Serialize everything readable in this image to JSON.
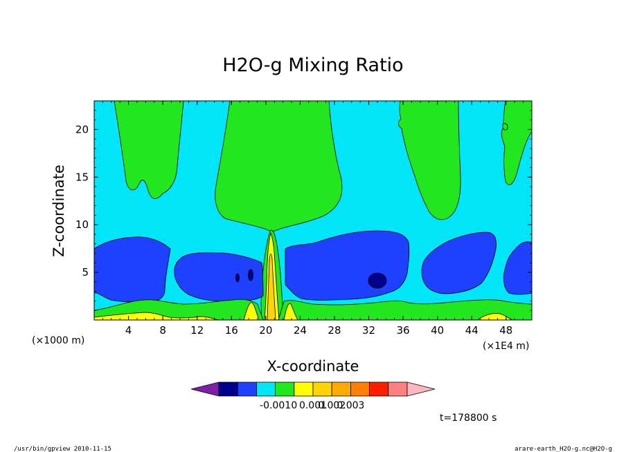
{
  "chart_data": {
    "type": "heatmap",
    "title": "H2O-g Mixing Ratio",
    "xlabel": "X-coordinate",
    "ylabel": "Z-coordinate",
    "x_unit_left": "(×1000 m)",
    "x_unit_right": "(×1E4 m)",
    "x_ticks": [
      "4",
      "8",
      "12",
      "16",
      "20",
      "24",
      "28",
      "32",
      "36",
      "40",
      "44",
      "48"
    ],
    "y_ticks": [
      "5",
      "10",
      "15",
      "20"
    ],
    "xlim": [
      0,
      51
    ],
    "ylim": [
      0,
      23
    ],
    "colorbar": {
      "tick_labels": [
        "-0.001",
        "0",
        "0.001",
        "0.002",
        "0.003"
      ],
      "colors": [
        "#7f1fa8",
        "#00008b",
        "#1e40ff",
        "#00e6f8",
        "#22e61e",
        "#ffff00",
        "#ffd400",
        "#ffaa00",
        "#ff7f00",
        "#ff1e00",
        "#ff8080",
        "#ffb6c1"
      ]
    },
    "time_label": "t=178800 s",
    "footer_left": "/usr/bin/gpview   2010-11-15",
    "footer_right": "arare-earth_H2O-g.nc@H2O-g"
  }
}
